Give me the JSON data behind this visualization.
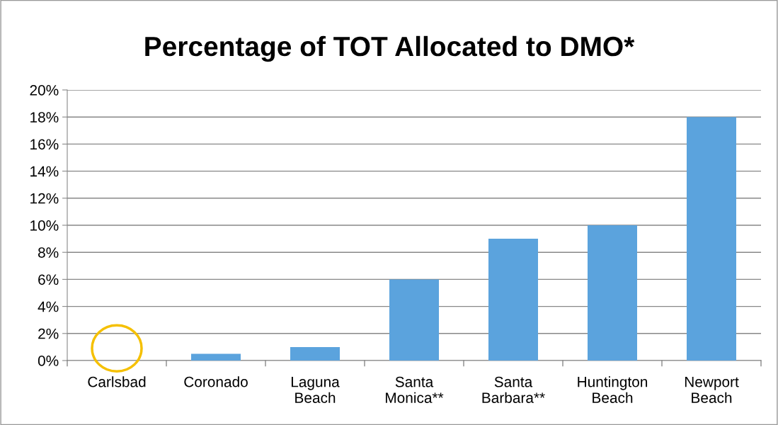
{
  "chart_data": {
    "type": "bar",
    "title": "Percentage of TOT Allocated to DMO*",
    "categories": [
      "Carlsbad",
      "Coronado",
      "Laguna\nBeach",
      "Santa\nMonica**",
      "Santa\nBarbara**",
      "Huntington\nBeach",
      "Newport\nBeach"
    ],
    "values": [
      0,
      0.5,
      1,
      6,
      9,
      10,
      18
    ],
    "color": "#5ba3dd",
    "ylim": [
      0,
      20
    ],
    "yticks": [
      {
        "value": 0,
        "label": "0%"
      },
      {
        "value": 2,
        "label": "2%"
      },
      {
        "value": 4,
        "label": "4%"
      },
      {
        "value": 6,
        "label": "6%"
      },
      {
        "value": 8,
        "label": "8%"
      },
      {
        "value": 10,
        "label": "10%"
      },
      {
        "value": 12,
        "label": "12%"
      },
      {
        "value": 14,
        "label": "14%"
      },
      {
        "value": 16,
        "label": "16%"
      },
      {
        "value": 18,
        "label": "18%"
      },
      {
        "value": 20,
        "label": "20%"
      }
    ],
    "grid": "y",
    "legend": false
  }
}
